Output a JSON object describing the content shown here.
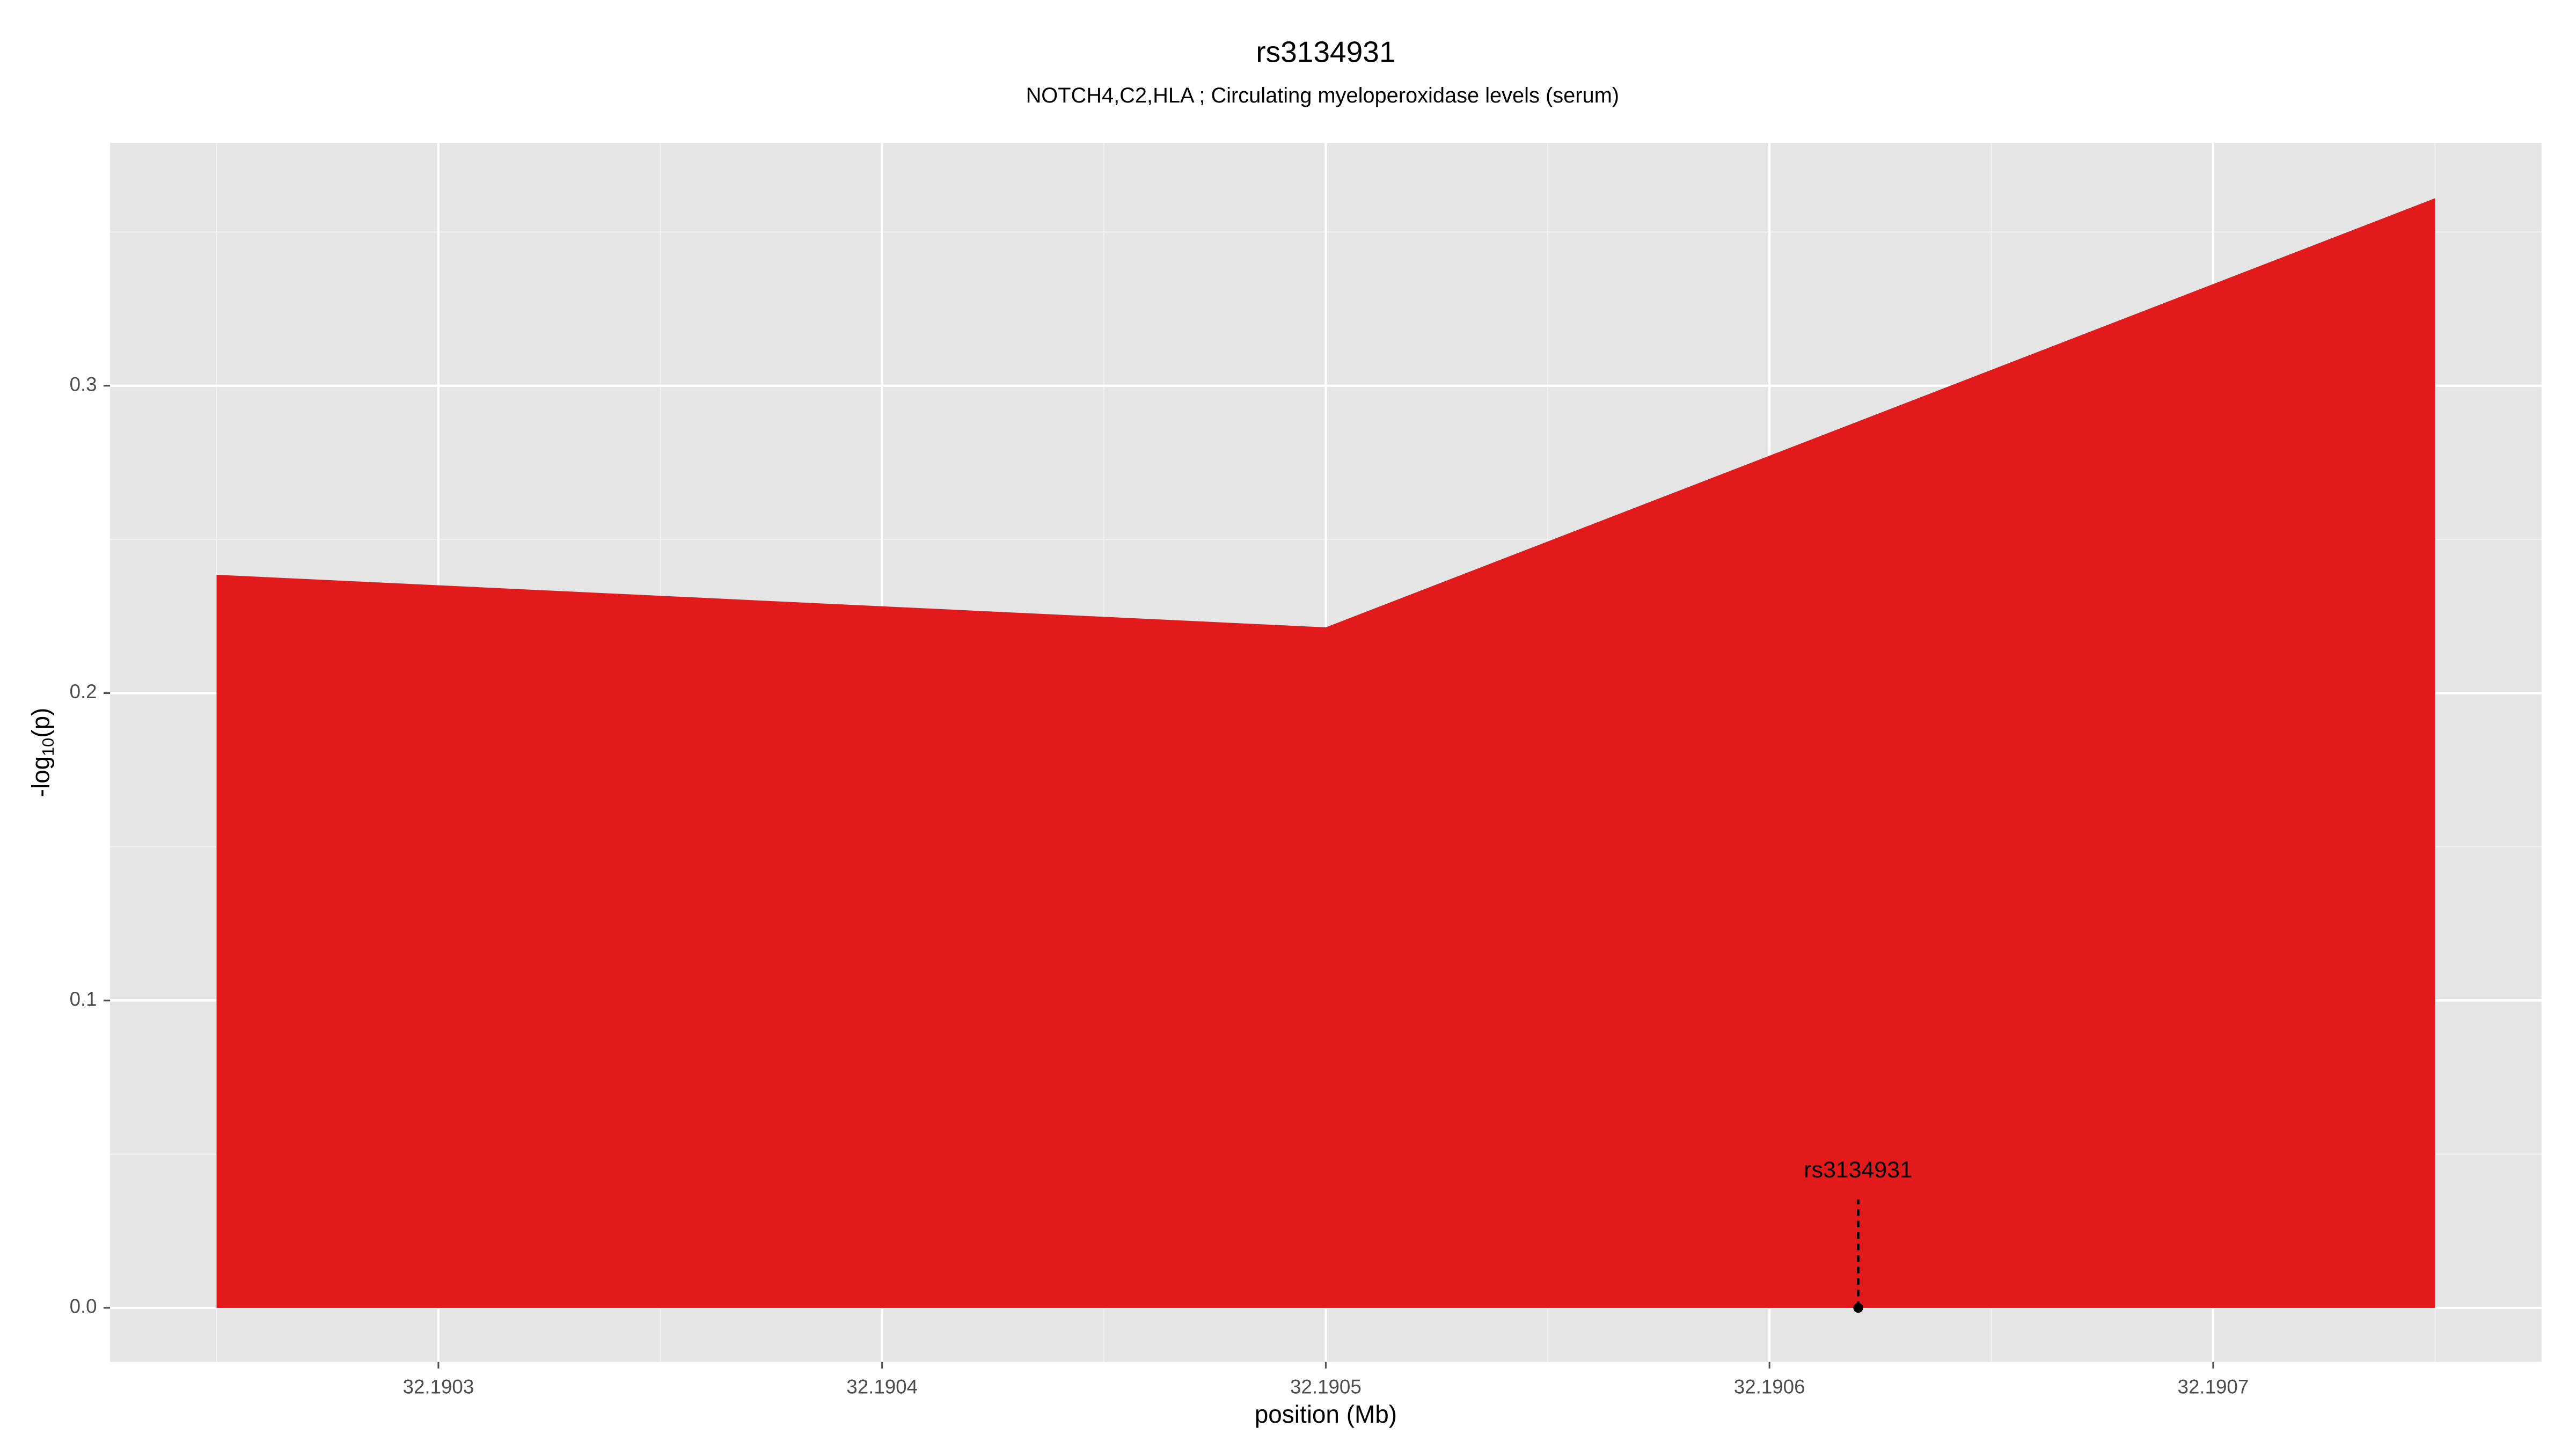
{
  "chart_data": {
    "type": "area",
    "title": "rs3134931",
    "subtitle": "NOTCH4,C2,HLA ; Circulating myeloperoxidase levels (serum)",
    "xlabel": "position (Mb)",
    "ylabel": {
      "prefix": "-log",
      "sub": "10",
      "suffix": "(p)"
    },
    "x": [
      32.19025,
      32.1905,
      32.19075
    ],
    "values": [
      0.2385,
      0.2214,
      0.361
    ],
    "color": "#e31a1c",
    "xlim": [
      32.190226,
      32.190774
    ],
    "ylim": [
      -0.0176,
      0.379
    ],
    "xticks": [
      32.1903,
      32.1904,
      32.1905,
      32.1906,
      32.1907
    ],
    "yticks": [
      {
        "value": 0,
        "label": "0.0"
      },
      0.1,
      0.2,
      0.3
    ],
    "grid": true,
    "annotations": [
      {
        "label": "rs3134931",
        "x": 32.19062,
        "y": 0
      }
    ]
  }
}
